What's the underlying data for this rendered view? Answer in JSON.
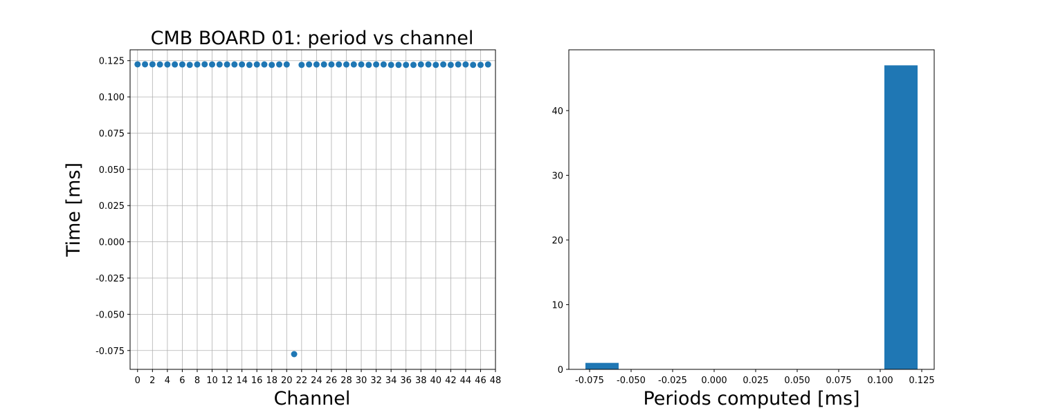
{
  "chart_data": [
    {
      "type": "scatter",
      "title": "CMB BOARD 01: period vs channel",
      "xlabel": "Channel",
      "ylabel": "Time [ms]",
      "xlim": [
        -1,
        48
      ],
      "ylim": [
        -0.088,
        0.1325
      ],
      "grid": true,
      "color": "#1f77b4",
      "x_ticks": [
        0,
        2,
        4,
        6,
        8,
        10,
        12,
        14,
        16,
        18,
        20,
        22,
        24,
        26,
        28,
        30,
        32,
        34,
        36,
        38,
        40,
        42,
        44,
        46,
        48
      ],
      "y_ticks": [
        "0.125",
        "0.100",
        "0.075",
        "0.050",
        "0.025",
        "0.000",
        "-0.025",
        "-0.050",
        "-0.075"
      ],
      "y_tick_values": [
        0.125,
        0.1,
        0.075,
        0.05,
        0.025,
        0.0,
        -0.025,
        -0.05,
        -0.075
      ],
      "points": [
        {
          "x": 0,
          "y": 0.1225
        },
        {
          "x": 1,
          "y": 0.1225
        },
        {
          "x": 2,
          "y": 0.1225
        },
        {
          "x": 3,
          "y": 0.1224
        },
        {
          "x": 4,
          "y": 0.1224
        },
        {
          "x": 5,
          "y": 0.1224
        },
        {
          "x": 6,
          "y": 0.1224
        },
        {
          "x": 7,
          "y": 0.1221
        },
        {
          "x": 8,
          "y": 0.1224
        },
        {
          "x": 9,
          "y": 0.1225
        },
        {
          "x": 10,
          "y": 0.1224
        },
        {
          "x": 11,
          "y": 0.1224
        },
        {
          "x": 12,
          "y": 0.1224
        },
        {
          "x": 13,
          "y": 0.1224
        },
        {
          "x": 14,
          "y": 0.1224
        },
        {
          "x": 15,
          "y": 0.1221
        },
        {
          "x": 16,
          "y": 0.1224
        },
        {
          "x": 17,
          "y": 0.1224
        },
        {
          "x": 18,
          "y": 0.1221
        },
        {
          "x": 19,
          "y": 0.1224
        },
        {
          "x": 20,
          "y": 0.1224
        },
        {
          "x": 21,
          "y": -0.0775
        },
        {
          "x": 22,
          "y": 0.1221
        },
        {
          "x": 23,
          "y": 0.1224
        },
        {
          "x": 24,
          "y": 0.1224
        },
        {
          "x": 25,
          "y": 0.1224
        },
        {
          "x": 26,
          "y": 0.1224
        },
        {
          "x": 27,
          "y": 0.1224
        },
        {
          "x": 28,
          "y": 0.1224
        },
        {
          "x": 29,
          "y": 0.1224
        },
        {
          "x": 30,
          "y": 0.1224
        },
        {
          "x": 31,
          "y": 0.1221
        },
        {
          "x": 32,
          "y": 0.1224
        },
        {
          "x": 33,
          "y": 0.1224
        },
        {
          "x": 34,
          "y": 0.1221
        },
        {
          "x": 35,
          "y": 0.1221
        },
        {
          "x": 36,
          "y": 0.1221
        },
        {
          "x": 37,
          "y": 0.1221
        },
        {
          "x": 38,
          "y": 0.1224
        },
        {
          "x": 39,
          "y": 0.1224
        },
        {
          "x": 40,
          "y": 0.1221
        },
        {
          "x": 41,
          "y": 0.1224
        },
        {
          "x": 42,
          "y": 0.1221
        },
        {
          "x": 43,
          "y": 0.1224
        },
        {
          "x": 44,
          "y": 0.1224
        },
        {
          "x": 45,
          "y": 0.1221
        },
        {
          "x": 46,
          "y": 0.1221
        },
        {
          "x": 47,
          "y": 0.1224
        }
      ]
    },
    {
      "type": "bar",
      "title": "",
      "xlabel": "Periods computed [ms]",
      "ylabel": "",
      "xlim": [
        -0.0875,
        0.1325
      ],
      "ylim": [
        0,
        49.4
      ],
      "grid": false,
      "color": "#1f77b4",
      "x_ticks": [
        "-0.075",
        "-0.050",
        "-0.025",
        "0.000",
        "0.025",
        "0.050",
        "0.075",
        "0.100",
        "0.125"
      ],
      "x_tick_values": [
        -0.075,
        -0.05,
        -0.025,
        0.0,
        0.025,
        0.05,
        0.075,
        0.1,
        0.125
      ],
      "y_ticks": [
        0,
        10,
        20,
        30,
        40
      ],
      "bins": [
        {
          "x0": -0.0775,
          "x1": -0.0575,
          "count": 1
        },
        {
          "x0": -0.0575,
          "x1": -0.0375,
          "count": 0
        },
        {
          "x0": -0.0375,
          "x1": -0.0175,
          "count": 0
        },
        {
          "x0": -0.0175,
          "x1": 0.0025,
          "count": 0
        },
        {
          "x0": 0.0025,
          "x1": 0.0225,
          "count": 0
        },
        {
          "x0": 0.0225,
          "x1": 0.0425,
          "count": 0
        },
        {
          "x0": 0.0425,
          "x1": 0.0625,
          "count": 0
        },
        {
          "x0": 0.0625,
          "x1": 0.0825,
          "count": 0
        },
        {
          "x0": 0.0825,
          "x1": 0.1025,
          "count": 0
        },
        {
          "x0": 0.1025,
          "x1": 0.1225,
          "count": 47
        }
      ]
    }
  ]
}
